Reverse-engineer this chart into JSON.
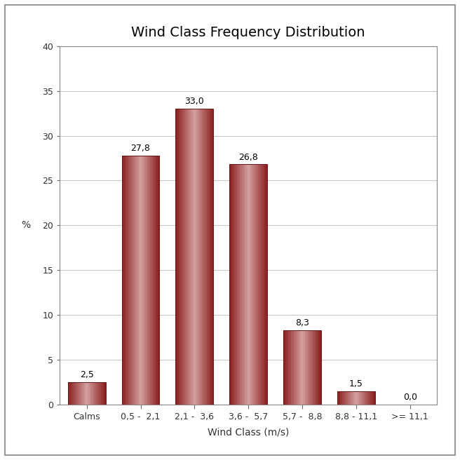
{
  "title": "Wind Class Frequency Distribution",
  "categories": [
    "Calms",
    "0,5 -  2,1",
    "2,1 -  3,6",
    "3,6 -  5,7",
    "5,7 -  8,8",
    "8,8 - 11,1",
    ">= 11,1"
  ],
  "values": [
    2.5,
    27.8,
    33.0,
    26.8,
    8.3,
    1.5,
    0.0
  ],
  "labels": [
    "2,5",
    "27,8",
    "33,0",
    "26,8",
    "8,3",
    "1,5",
    "0,0"
  ],
  "xlabel": "Wind Class (m/s)",
  "ylabel": "%",
  "ylim": [
    0,
    40
  ],
  "yticks": [
    0,
    5,
    10,
    15,
    20,
    25,
    30,
    35,
    40
  ],
  "bar_color_dark": "#8B2020",
  "bar_color_mid": "#A83030",
  "bar_color_light": "#D4A0A0",
  "background_color": "#FFFFFF",
  "plot_bg_color": "#FFFFFF",
  "grid_color": "#C8C8C8",
  "border_color": "#A0A0A0",
  "title_fontsize": 14,
  "label_fontsize": 10,
  "tick_fontsize": 9,
  "annot_fontsize": 9
}
